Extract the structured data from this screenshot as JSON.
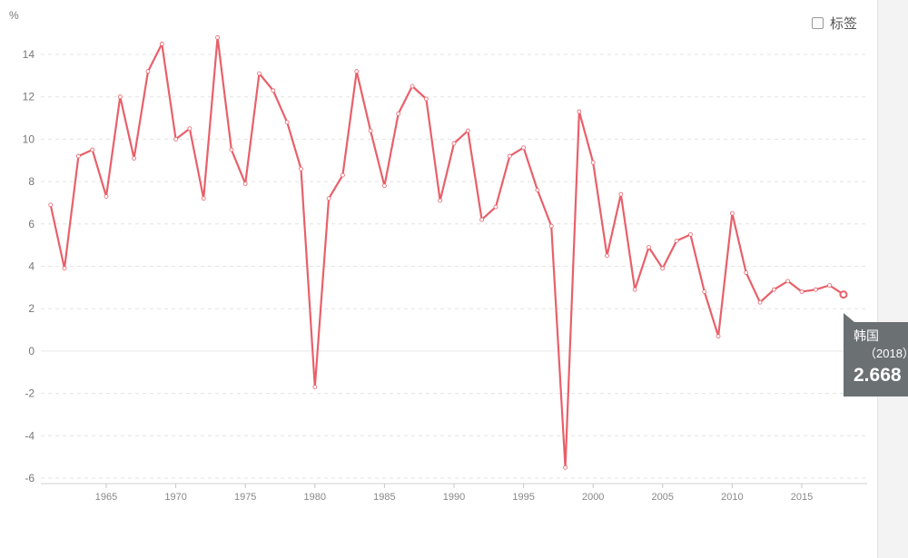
{
  "chart_data": {
    "type": "line",
    "ylabel": "%",
    "ylim": [
      -6,
      15
    ],
    "yticks": [
      -6,
      -4,
      -2,
      0,
      2,
      4,
      6,
      8,
      10,
      12,
      14
    ],
    "xlim": [
      1960.3,
      2019.7
    ],
    "xticks": [
      1965,
      1970,
      1975,
      1980,
      1985,
      1990,
      1995,
      2000,
      2005,
      2010,
      2015
    ],
    "grid": true,
    "legend_position": "top-right",
    "series": [
      {
        "name": "韩国",
        "color": "#e8606a",
        "x": [
          1961,
          1962,
          1963,
          1964,
          1965,
          1966,
          1967,
          1968,
          1969,
          1970,
          1971,
          1972,
          1973,
          1974,
          1975,
          1976,
          1977,
          1978,
          1979,
          1980,
          1981,
          1982,
          1983,
          1984,
          1985,
          1986,
          1987,
          1988,
          1989,
          1990,
          1991,
          1992,
          1993,
          1994,
          1995,
          1996,
          1997,
          1998,
          1999,
          2000,
          2001,
          2002,
          2003,
          2004,
          2005,
          2006,
          2007,
          2008,
          2009,
          2010,
          2011,
          2012,
          2013,
          2014,
          2015,
          2016,
          2017,
          2018
        ],
        "values": [
          6.9,
          3.9,
          9.2,
          9.5,
          7.3,
          12.0,
          9.1,
          13.2,
          14.5,
          10.0,
          10.5,
          7.2,
          14.8,
          9.5,
          7.9,
          13.1,
          12.3,
          10.8,
          8.6,
          -1.7,
          7.2,
          8.3,
          13.2,
          10.4,
          7.8,
          11.2,
          12.5,
          11.9,
          7.1,
          9.8,
          10.4,
          6.2,
          6.8,
          9.2,
          9.6,
          7.6,
          5.9,
          -5.5,
          11.3,
          8.9,
          4.5,
          7.4,
          2.9,
          4.9,
          3.9,
          5.2,
          5.5,
          2.8,
          0.7,
          6.5,
          3.7,
          2.3,
          2.9,
          3.3,
          2.8,
          2.9,
          3.1,
          2.668
        ]
      }
    ]
  },
  "legend": {
    "label": "标签"
  },
  "tooltip": {
    "name": "韩国",
    "year": "（2018）",
    "value": "2.668"
  }
}
